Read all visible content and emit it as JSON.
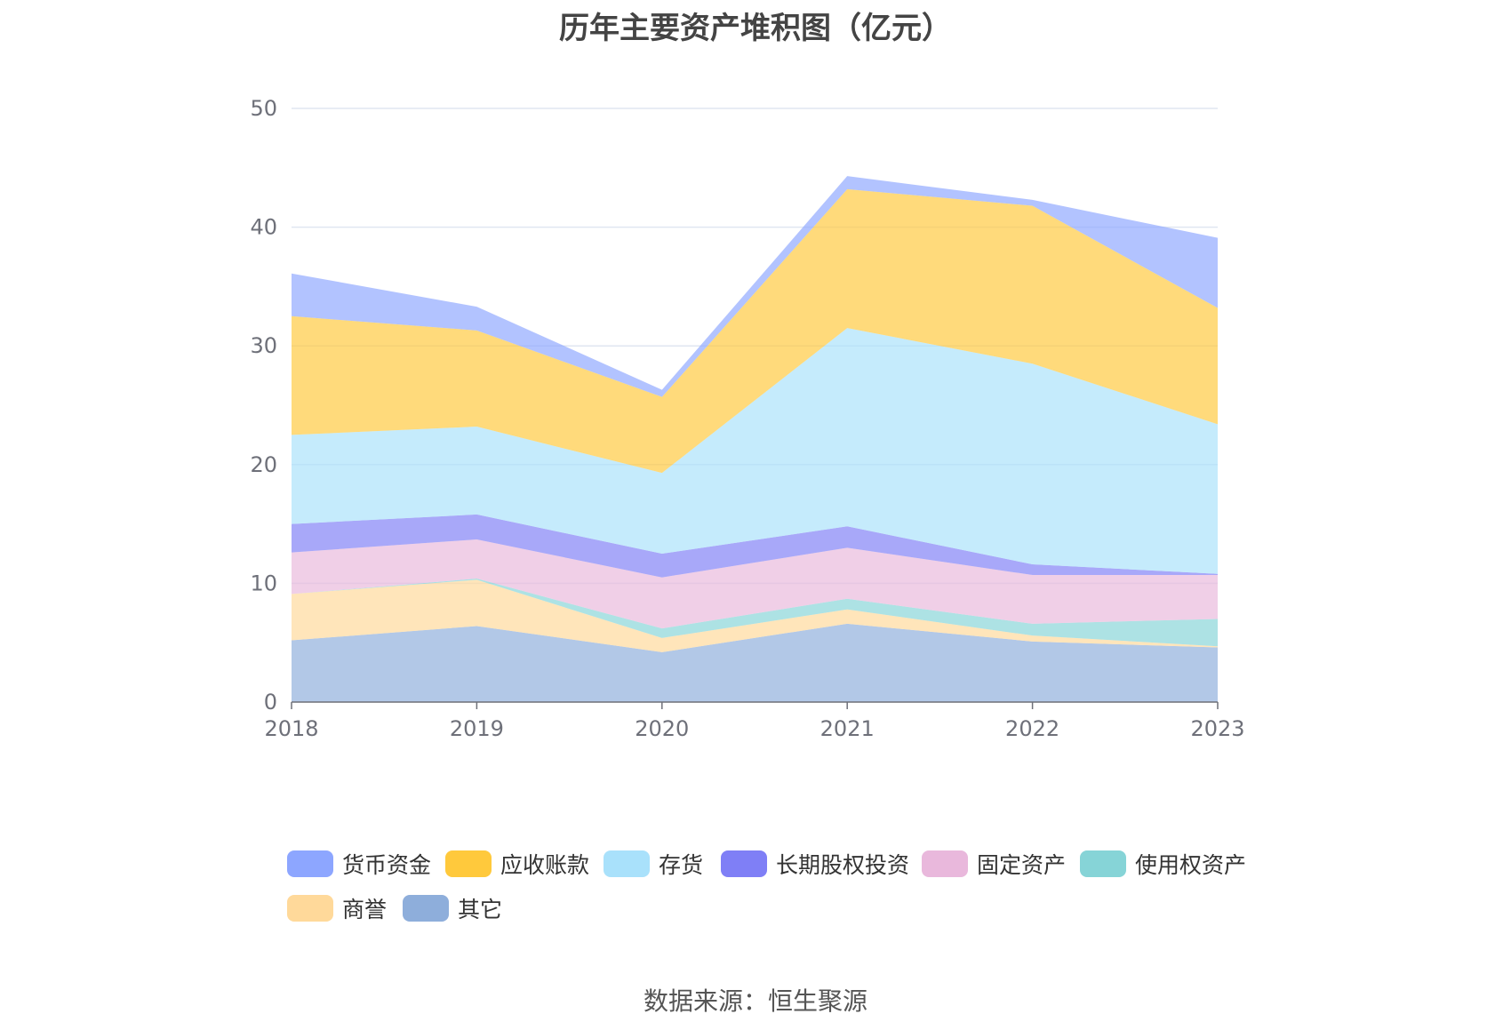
{
  "chart_data": {
    "type": "area",
    "stacked": true,
    "title": "历年主要资产堆积图（亿元）",
    "x": [
      "2018",
      "2019",
      "2020",
      "2021",
      "2022",
      "2023"
    ],
    "ylim": [
      0,
      50
    ],
    "yticks": [
      0,
      10,
      20,
      30,
      40,
      50
    ],
    "grid": true,
    "legend_position": "bottom",
    "series": [
      {
        "name": "其它",
        "color": "#8eaedb",
        "values": [
          5.2,
          6.4,
          4.2,
          6.6,
          5.1,
          4.6
        ]
      },
      {
        "name": "商誉",
        "color": "#ffd99a",
        "values": [
          3.9,
          3.9,
          1.2,
          1.2,
          0.5,
          0.1
        ]
      },
      {
        "name": "使用权资产",
        "color": "#86d4d7",
        "values": [
          0.0,
          0.1,
          0.8,
          0.9,
          1.0,
          2.3
        ]
      },
      {
        "name": "固定资产",
        "color": "#e9b8dc",
        "values": [
          3.5,
          3.3,
          4.3,
          4.3,
          4.1,
          3.7
        ]
      },
      {
        "name": "长期股权投资",
        "color": "#7f7ff6",
        "values": [
          2.4,
          2.1,
          2.0,
          1.8,
          0.9,
          0.1
        ]
      },
      {
        "name": "存货",
        "color": "#a9e1fb",
        "values": [
          7.5,
          7.4,
          6.8,
          16.7,
          16.9,
          12.6
        ]
      },
      {
        "name": "应收账款",
        "color": "#ffc93c",
        "values": [
          10.0,
          8.1,
          6.4,
          11.7,
          13.3,
          9.8
        ]
      },
      {
        "name": "货币资金",
        "color": "#8da6ff",
        "values": [
          3.6,
          2.0,
          0.6,
          1.1,
          0.5,
          5.9
        ]
      }
    ],
    "source": "数据来源：恒生聚源"
  },
  "legend_order": [
    "货币资金",
    "应收账款",
    "存货",
    "长期股权投资",
    "固定资产",
    "使用权资产",
    "商誉",
    "其它"
  ]
}
